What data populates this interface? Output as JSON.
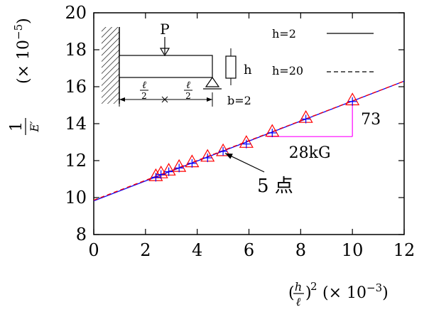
{
  "chart_data": {
    "type": "scatter",
    "x_axis": {
      "label": "(h/ℓ)² (× 10⁻³)",
      "label_parts": {
        "base": "h",
        "den": "ℓ",
        "exp": "2",
        "scale": "(× 10",
        "scale_exp": "−3",
        "scale_close": ")"
      },
      "range": [
        0,
        12
      ],
      "ticks": [
        0,
        2,
        4,
        6,
        8,
        10,
        12
      ]
    },
    "y_axis": {
      "label": "1/E′ (× 10⁻⁵)",
      "label_parts": {
        "num": "1",
        "den": "E′",
        "scale": "(× 10",
        "scale_exp": "−5",
        "scale_close": ")"
      },
      "range": [
        8,
        20
      ],
      "ticks": [
        8,
        10,
        12,
        14,
        16,
        18,
        20
      ]
    },
    "grid": false,
    "series": [
      {
        "name": "h=2",
        "style": "solid",
        "color": "#0000ff",
        "line": {
          "intercept": 9.82,
          "slope": 0.54
        }
      },
      {
        "name": "h=20",
        "style": "dashed",
        "color": "#ff0000",
        "line": {
          "intercept": 9.86,
          "slope": 0.537
        }
      }
    ],
    "points_triangle": {
      "color": "#ff0000",
      "x": [
        2.4,
        2.6,
        2.9,
        3.3,
        3.8,
        4.4,
        5.0,
        5.9,
        6.9,
        8.2,
        10.0
      ],
      "y": [
        11.15,
        11.3,
        11.45,
        11.65,
        11.9,
        12.2,
        12.5,
        12.95,
        13.55,
        14.3,
        15.25
      ]
    },
    "points_plus": {
      "color": "#0000ff",
      "x": [
        2.4,
        2.6,
        2.9,
        3.3,
        3.8,
        4.4,
        5.0,
        5.9,
        6.9,
        8.2,
        10.0
      ],
      "y": [
        11.1,
        11.25,
        11.4,
        11.6,
        11.85,
        12.15,
        12.5,
        12.9,
        13.5,
        14.25,
        15.2
      ]
    },
    "slope_triangle": {
      "x1": 6.7,
      "x2": 10.0,
      "y": 13.3,
      "color": "#ff00ff",
      "rise_label": "73",
      "run_label": "28kG"
    },
    "annotation": {
      "text": "5 点",
      "arrow_to": [
        5.0,
        12.55
      ]
    }
  },
  "inset": {
    "force_label": "P",
    "height_label": "h",
    "width_label": "b=2",
    "span_left": "ℓ/2",
    "span_right": "ℓ/2",
    "span_num": "ℓ",
    "span_den": "2"
  }
}
